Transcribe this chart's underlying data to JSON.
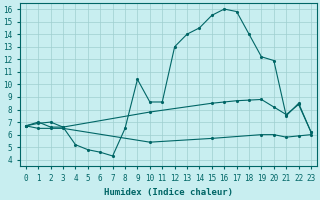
{
  "xlabel": "Humidex (Indice chaleur)",
  "bg_color": "#c8eef0",
  "grid_color": "#9fcfcf",
  "line_color": "#006666",
  "xlim": [
    -0.5,
    23.5
  ],
  "ylim": [
    3.5,
    16.5
  ],
  "xticks": [
    0,
    1,
    2,
    3,
    4,
    5,
    6,
    7,
    8,
    9,
    10,
    11,
    12,
    13,
    14,
    15,
    16,
    17,
    18,
    19,
    20,
    21,
    22,
    23
  ],
  "yticks": [
    4,
    5,
    6,
    7,
    8,
    9,
    10,
    11,
    12,
    13,
    14,
    15,
    16
  ],
  "line1_x": [
    0,
    1,
    2,
    3,
    4,
    5,
    6,
    7,
    8,
    9,
    10,
    11,
    12,
    13,
    14,
    15,
    16,
    17,
    18,
    19,
    20,
    21,
    22,
    23
  ],
  "line1_y": [
    6.7,
    7.0,
    6.6,
    6.6,
    5.2,
    4.8,
    4.6,
    4.3,
    6.5,
    10.4,
    8.6,
    8.6,
    13.0,
    14.0,
    14.5,
    15.5,
    16.0,
    15.8,
    14.0,
    12.2,
    11.9,
    7.5,
    8.5,
    6.2
  ],
  "line2_x": [
    0,
    1,
    2,
    3,
    10,
    15,
    16,
    17,
    18,
    19,
    20,
    21,
    22,
    23
  ],
  "line2_y": [
    6.7,
    6.9,
    7.0,
    6.6,
    7.8,
    8.5,
    8.6,
    8.7,
    8.75,
    8.8,
    8.2,
    7.6,
    8.4,
    6.2
  ],
  "line3_x": [
    0,
    1,
    2,
    3,
    10,
    15,
    19,
    20,
    21,
    22,
    23
  ],
  "line3_y": [
    6.7,
    6.5,
    6.5,
    6.5,
    5.4,
    5.7,
    6.0,
    6.0,
    5.8,
    5.9,
    6.0
  ]
}
